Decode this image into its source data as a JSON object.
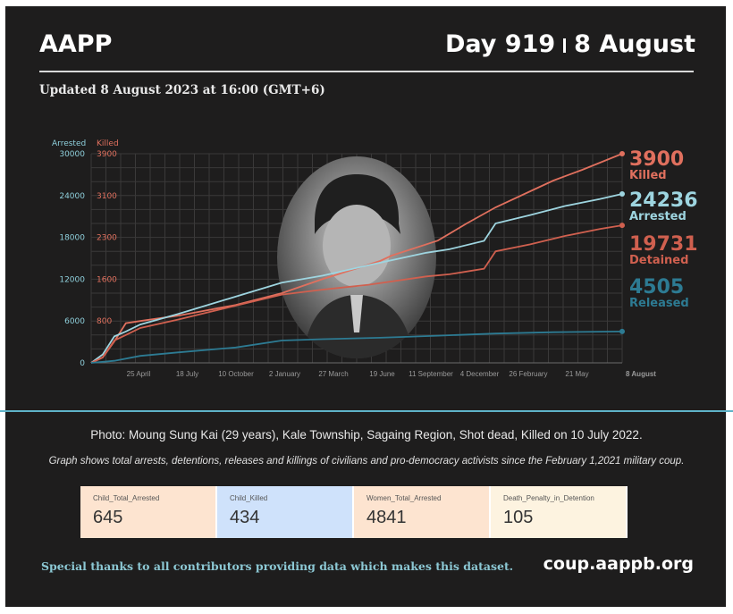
{
  "header": {
    "org": "AAPP",
    "day": "Day 919",
    "date": "8 August",
    "updated": "Updated 8 August 2023 at 16:00 (GMT+6)"
  },
  "photo": {
    "caption": "Photo: Moung Sung Kai (29 years), Kale Township, Sagaing Region, Shot dead, Killed on 10 July 2022."
  },
  "note": "Graph shows total arrests, detentions, releases and killings of civilians and pro-democracy activists since the February 1,2021 military coup.",
  "stats": [
    {
      "label": "Child_Total_Arrested",
      "value": "645",
      "color": "#fde4d0"
    },
    {
      "label": "Child_Killed",
      "value": "434",
      "color": "#cfe2fb"
    },
    {
      "label": "Women_Total_Arrested",
      "value": "4841",
      "color": "#fde4d0"
    },
    {
      "label": "Death_Penalty_in_Detention",
      "value": "105",
      "color": "#fdf3e0"
    }
  ],
  "footer": {
    "thanks": "Special thanks to all contributors providing data which makes this dataset.",
    "site": "coup.aappb.org"
  },
  "chart_data": {
    "type": "line",
    "left_axis_title": "Arrested",
    "right_axis_title": "Killed",
    "left_ticks": [
      "30000",
      "24000",
      "18000",
      "12000",
      "6000",
      "0"
    ],
    "right_ticks": [
      "3900",
      "3100",
      "2300",
      "1600",
      "800",
      ""
    ],
    "ylim_arrested": [
      0,
      30000
    ],
    "ylim_killed": [
      0,
      3900
    ],
    "x_ticks": [
      "25 April",
      "18 July",
      "10 October",
      "2 January",
      "27 March",
      "19 June",
      "11 September",
      "4 December",
      "26 February",
      "21 May",
      "8 August"
    ],
    "x_range": [
      0,
      919
    ],
    "series": [
      {
        "name": "Killed",
        "axis": "killed",
        "color": "#e0705e",
        "x": [
          0,
          20,
          40,
          60,
          85,
          150,
          250,
          330,
          400,
          500,
          520,
          600,
          650,
          700,
          760,
          800,
          850,
          919
        ],
        "y": [
          0,
          100,
          400,
          740,
          780,
          880,
          1080,
          1300,
          1560,
          1900,
          2000,
          2280,
          2600,
          2900,
          3200,
          3400,
          3600,
          3900
        ]
      },
      {
        "name": "Arrested",
        "axis": "arrested",
        "color": "#9ed5e0",
        "x": [
          0,
          20,
          40,
          60,
          85,
          150,
          250,
          330,
          400,
          480,
          580,
          620,
          680,
          700,
          760,
          820,
          880,
          919
        ],
        "y": [
          0,
          1200,
          3800,
          4500,
          5500,
          7000,
          9500,
          11500,
          12500,
          14000,
          15800,
          16300,
          17500,
          20000,
          21200,
          22500,
          23500,
          24236
        ]
      },
      {
        "name": "Detained",
        "axis": "arrested",
        "color": "#d0604f",
        "x": [
          0,
          20,
          40,
          60,
          85,
          150,
          250,
          330,
          400,
          480,
          580,
          620,
          680,
          700,
          760,
          820,
          880,
          919
        ],
        "y": [
          0,
          800,
          3200,
          4000,
          5000,
          6200,
          8200,
          9800,
          10500,
          11200,
          12400,
          12700,
          13500,
          16000,
          17000,
          18200,
          19200,
          19731
        ]
      },
      {
        "name": "Released",
        "axis": "arrested",
        "color": "#2d7b93",
        "x": [
          0,
          40,
          85,
          150,
          250,
          330,
          400,
          500,
          600,
          700,
          800,
          919
        ],
        "y": [
          0,
          300,
          1000,
          1500,
          2200,
          3200,
          3400,
          3600,
          3900,
          4200,
          4400,
          4505
        ]
      }
    ],
    "current_labels": [
      {
        "value": "3900",
        "label": "Killed",
        "color": "#e0705e"
      },
      {
        "value": "24236",
        "label": "Arrested",
        "color": "#9ed5e0"
      },
      {
        "value": "19731",
        "label": "Detained",
        "color": "#d0604f"
      },
      {
        "value": "4505",
        "label": "Released",
        "color": "#2d7b93"
      }
    ]
  }
}
